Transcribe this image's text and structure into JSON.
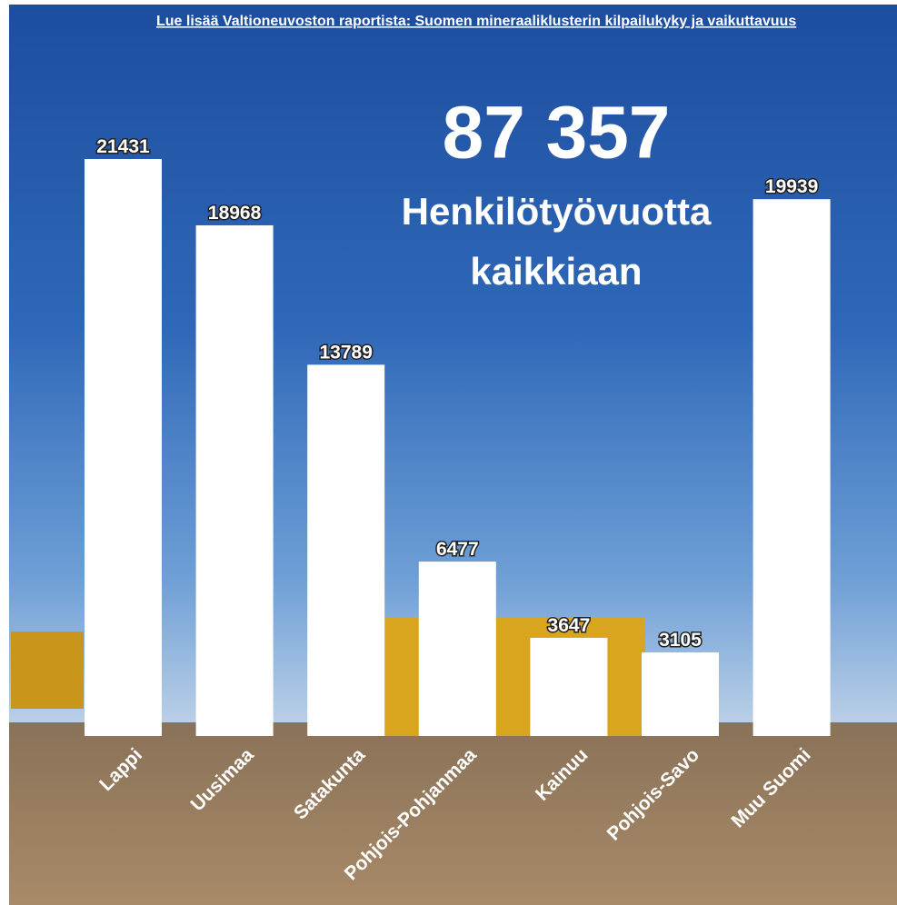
{
  "chart_data": {
    "type": "bar",
    "link": "Lue lisää Valtioneuvoston raportista: Suomen mineraaliklusterin kilpailukyky ja vaikuttavuus",
    "title": "87 357",
    "subtitle": "Henkilötyövuotta kaikkiaan",
    "categories": [
      "Lappi",
      "Uusimaa",
      "Satakunta",
      "Pohjois-Pohjanmaa",
      "Kainuu",
      "Pohjois-Savo",
      "Muu Suomi"
    ],
    "values": [
      21431,
      18968,
      13789,
      6477,
      3647,
      3105,
      19939
    ],
    "color": "#ffffff"
  }
}
